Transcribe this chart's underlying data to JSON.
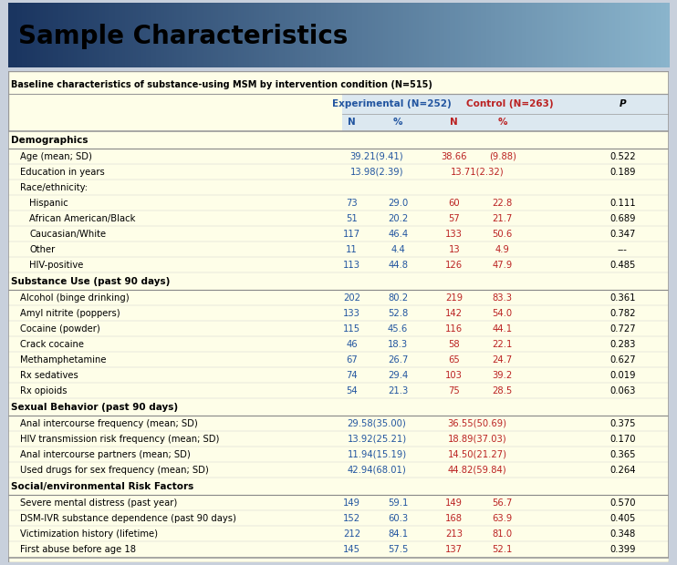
{
  "title": "Sample Characteristics",
  "subtitle": "Baseline characteristics of substance-using MSM by intervention condition (N=515)",
  "header1": "Experimental (N=252)",
  "header2": "Control (N=263)",
  "header_p": "P",
  "rows": [
    {
      "label": "Demographics",
      "type": "section",
      "indent": 0
    },
    {
      "label": "Age (mean; SD)",
      "type": "data_span",
      "indent": 1,
      "exp": "39.21(9.41)",
      "ctrl_parts": [
        "38.66",
        "(9.88)"
      ],
      "p": "0.522"
    },
    {
      "label": "Education in years",
      "type": "data_span",
      "indent": 1,
      "exp": "13.98(2.39)",
      "ctrl_parts": [
        "13.71(2.32)",
        ""
      ],
      "p": "0.189"
    },
    {
      "label": "Race/ethnicity:",
      "type": "label_only",
      "indent": 1
    },
    {
      "label": "Hispanic",
      "type": "data4",
      "indent": 2,
      "exp_n": "73",
      "exp_pct": "29.0",
      "ctrl_n": "60",
      "ctrl_pct": "22.8",
      "p": "0.111"
    },
    {
      "label": "African American/Black",
      "type": "data4",
      "indent": 2,
      "exp_n": "51",
      "exp_pct": "20.2",
      "ctrl_n": "57",
      "ctrl_pct": "21.7",
      "p": "0.689"
    },
    {
      "label": "Caucasian/White",
      "type": "data4",
      "indent": 2,
      "exp_n": "117",
      "exp_pct": "46.4",
      "ctrl_n": "133",
      "ctrl_pct": "50.6",
      "p": "0.347"
    },
    {
      "label": "Other",
      "type": "data4",
      "indent": 2,
      "exp_n": "11",
      "exp_pct": "4.4",
      "ctrl_n": "13",
      "ctrl_pct": "4.9",
      "p": "---"
    },
    {
      "label": "HIV-positive",
      "type": "data4",
      "indent": 2,
      "exp_n": "113",
      "exp_pct": "44.8",
      "ctrl_n": "126",
      "ctrl_pct": "47.9",
      "p": "0.485"
    },
    {
      "label": "Substance Use (past 90 days)",
      "type": "section",
      "indent": 0
    },
    {
      "label": "Alcohol (binge drinking)",
      "type": "data4",
      "indent": 1,
      "exp_n": "202",
      "exp_pct": "80.2",
      "ctrl_n": "219",
      "ctrl_pct": "83.3",
      "p": "0.361"
    },
    {
      "label": "Amyl nitrite (poppers)",
      "type": "data4",
      "indent": 1,
      "exp_n": "133",
      "exp_pct": "52.8",
      "ctrl_n": "142",
      "ctrl_pct": "54.0",
      "p": "0.782"
    },
    {
      "label": "Cocaine (powder)",
      "type": "data4",
      "indent": 1,
      "exp_n": "115",
      "exp_pct": "45.6",
      "ctrl_n": "116",
      "ctrl_pct": "44.1",
      "p": "0.727"
    },
    {
      "label": "Crack cocaine",
      "type": "data4",
      "indent": 1,
      "exp_n": "46",
      "exp_pct": "18.3",
      "ctrl_n": "58",
      "ctrl_pct": "22.1",
      "p": "0.283"
    },
    {
      "label": "Methamphetamine",
      "type": "data4",
      "indent": 1,
      "exp_n": "67",
      "exp_pct": "26.7",
      "ctrl_n": "65",
      "ctrl_pct": "24.7",
      "p": "0.627"
    },
    {
      "label": "Rx sedatives",
      "type": "data4",
      "indent": 1,
      "exp_n": "74",
      "exp_pct": "29.4",
      "ctrl_n": "103",
      "ctrl_pct": "39.2",
      "p": "0.019"
    },
    {
      "label": "Rx opioids",
      "type": "data4",
      "indent": 1,
      "exp_n": "54",
      "exp_pct": "21.3",
      "ctrl_n": "75",
      "ctrl_pct": "28.5",
      "p": "0.063"
    },
    {
      "label": "Sexual Behavior (past 90 days)",
      "type": "section",
      "indent": 0
    },
    {
      "label": "Anal intercourse frequency (mean; SD)",
      "type": "data_span",
      "indent": 1,
      "exp": "29.58(35.00)",
      "ctrl_parts": [
        "36.55(50.69)",
        ""
      ],
      "p": "0.375"
    },
    {
      "label": "HIV transmission risk frequency (mean; SD)",
      "type": "data_span",
      "indent": 1,
      "exp": "13.92(25.21)",
      "ctrl_parts": [
        "18.89(37.03)",
        ""
      ],
      "p": "0.170"
    },
    {
      "label": "Anal intercourse partners (mean; SD)",
      "type": "data_span",
      "indent": 1,
      "exp": "11.94(15.19)",
      "ctrl_parts": [
        "14.50(21.27)",
        ""
      ],
      "p": "0.365"
    },
    {
      "label": "Used drugs for sex frequency (mean; SD)",
      "type": "data_span",
      "indent": 1,
      "exp": "42.94(68.01)",
      "ctrl_parts": [
        "44.82(59.84)",
        ""
      ],
      "p": "0.264"
    },
    {
      "label": "Social/environmental Risk Factors",
      "type": "section",
      "indent": 0
    },
    {
      "label": "Severe mental distress (past year)",
      "type": "data4",
      "indent": 1,
      "exp_n": "149",
      "exp_pct": "59.1",
      "ctrl_n": "149",
      "ctrl_pct": "56.7",
      "p": "0.570"
    },
    {
      "label": "DSM-IVR substance dependence (past 90 days)",
      "type": "data4",
      "indent": 1,
      "exp_n": "152",
      "exp_pct": "60.3",
      "ctrl_n": "168",
      "ctrl_pct": "63.9",
      "p": "0.405"
    },
    {
      "label": "Victimization history (lifetime)",
      "type": "data4",
      "indent": 1,
      "exp_n": "212",
      "exp_pct": "84.1",
      "ctrl_n": "213",
      "ctrl_pct": "81.0",
      "p": "0.348"
    },
    {
      "label": "First abuse before age 18",
      "type": "data4",
      "indent": 1,
      "exp_n": "145",
      "exp_pct": "57.5",
      "ctrl_n": "137",
      "ctrl_pct": "52.1",
      "p": "0.399"
    }
  ],
  "colors": {
    "title_bg_left": "#1a3560",
    "title_bg_right": "#8ab4cc",
    "table_bg": "#fefee8",
    "header_bg": "#dce8f0",
    "exp_color": "#2255a0",
    "ctrl_color": "#bb2222",
    "p_color": "#000000",
    "section_bg": "#fefee8",
    "border_color": "#999999"
  },
  "figsize": [
    7.42,
    6.2
  ],
  "dpi": 100
}
